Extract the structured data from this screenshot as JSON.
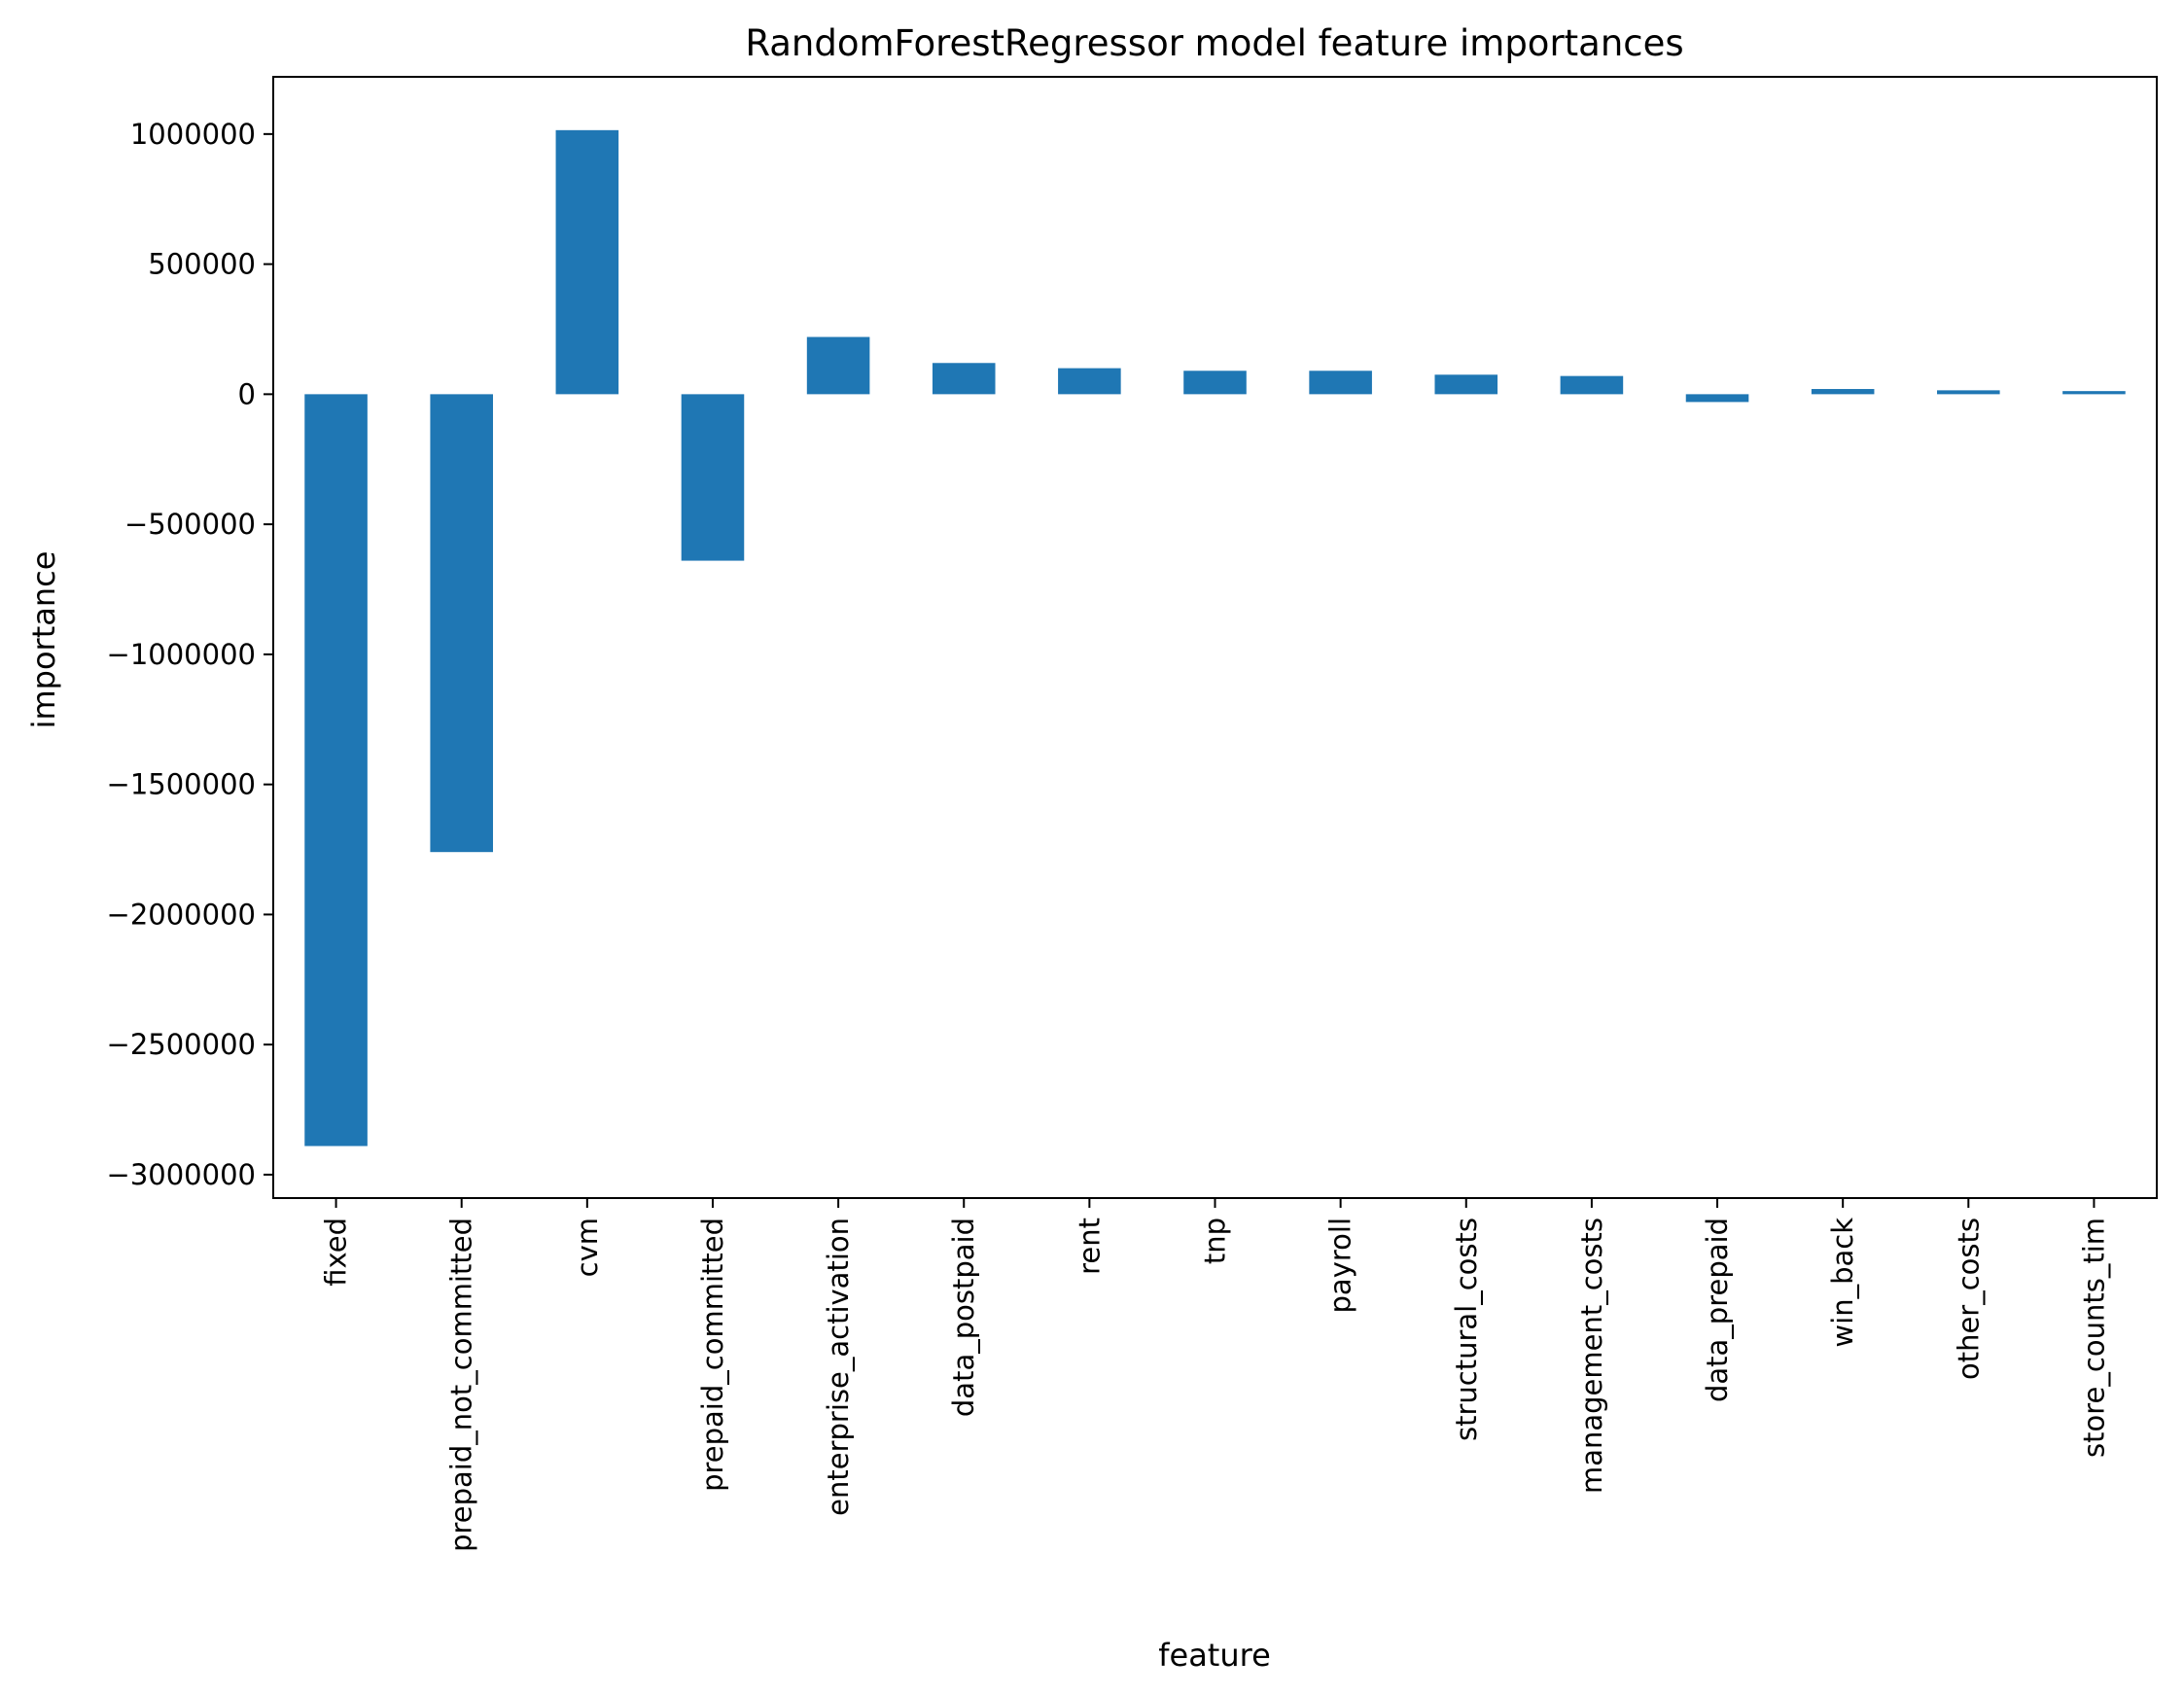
{
  "chart_data": {
    "type": "bar",
    "title": "RandomForestRegressor model feature importances",
    "xlabel": "feature",
    "ylabel": "importance",
    "categories": [
      "fixed",
      "prepaid_not_committed",
      "cvm",
      "prepaid_committed",
      "enterprise_activation",
      "data_postpaid",
      "rent",
      "tnp",
      "payroll",
      "structural_costs",
      "management_costs",
      "data_prepaid",
      "win_back",
      "other_costs",
      "store_counts_tim"
    ],
    "values": [
      -2890000,
      -1760000,
      1015000,
      -640000,
      220000,
      120000,
      100000,
      90000,
      90000,
      75000,
      70000,
      -30000,
      20000,
      15000,
      12000
    ],
    "ylim": [
      -3090000,
      1220000
    ],
    "yticks": [
      1000000,
      500000,
      0,
      -500000,
      -1000000,
      -1500000,
      -2000000,
      -2500000,
      -3000000
    ],
    "ytick_labels": [
      "1000000",
      "500000",
      "0",
      "−500000",
      "−1000000",
      "−1500000",
      "−2000000",
      "−2500000",
      "−3000000"
    ],
    "bar_color": "#1f77b4",
    "grid": false,
    "legend": "none"
  }
}
